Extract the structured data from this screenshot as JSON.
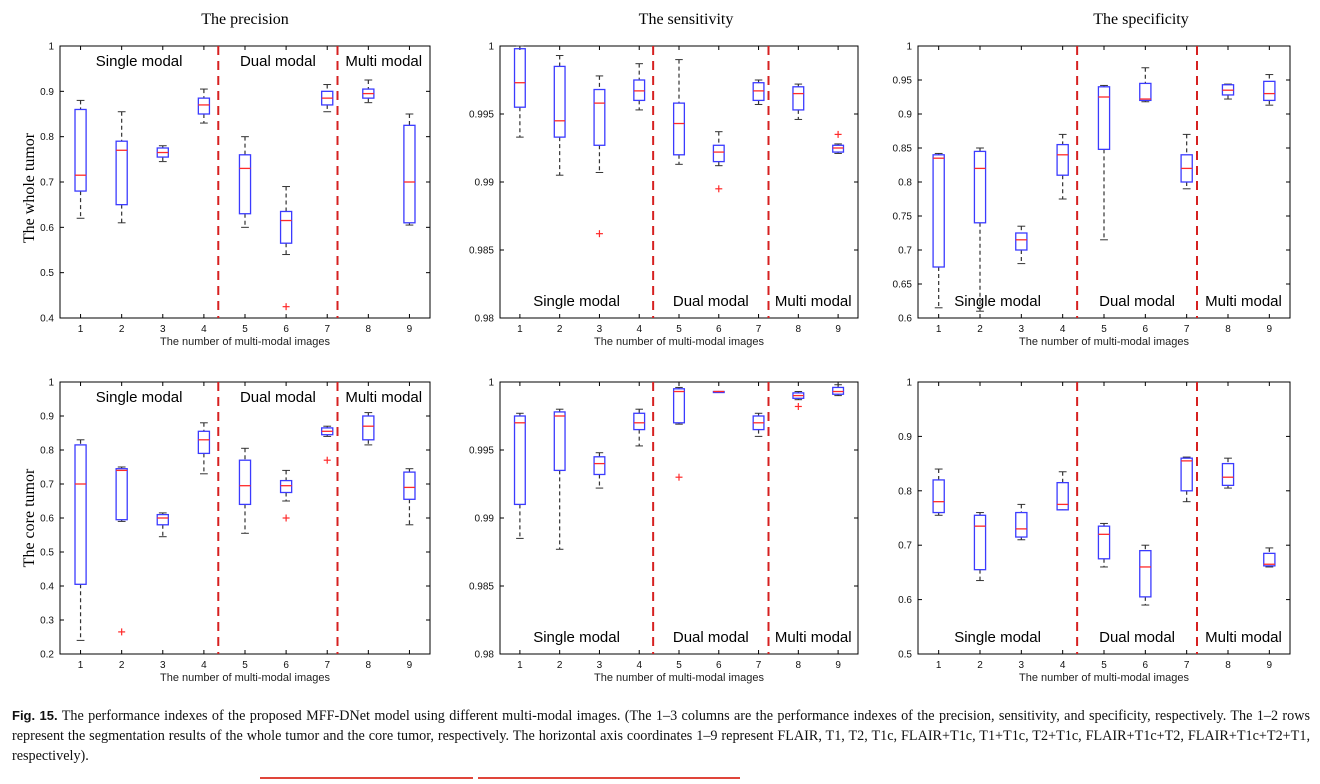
{
  "caption": {
    "label": "Fig. 15.",
    "text": "The performance indexes of the proposed MFF-DNet model using different multi-modal images. (The 1–3 columns are the performance indexes of the precision, sensitivity, and specificity, respectively. The 1–2 rows represent the segmentation results of the whole tumor and the core tumor, respectively. The horizontal axis coordinates 1–9 represent FLAIR, T1, T2, T1c, FLAIR+T1c, T1+T1c, T2+T1c, FLAIR+T1c+T2, FLAIR+T1c+T2+T1, respectively)."
  },
  "colors": {
    "box": "#3b3bff",
    "median": "#ff2a2a",
    "whisker": "#333333",
    "separator": "#d62020",
    "axis": "#000000"
  },
  "chart_data": [
    {
      "type": "box",
      "title": "The precision",
      "ylabel": "The whole tumor",
      "xlabel": "The number of multi-modal images",
      "ylim": [
        0.4,
        1
      ],
      "yticks": [
        0.4,
        0.5,
        0.6,
        0.7,
        0.8,
        0.9,
        1
      ],
      "ytick_labels": [
        "0.4",
        "0.5",
        "0.6",
        "0.7",
        "0.8",
        "0.9",
        "1"
      ],
      "x": [
        1,
        2,
        3,
        4,
        5,
        6,
        7,
        8,
        9
      ],
      "groups": [
        "Single modal",
        "Dual modal",
        "Multi modal"
      ],
      "group_labels_position": "top",
      "separators": [
        4.35,
        7.25
      ],
      "boxes": [
        {
          "x": 1,
          "q1": 0.68,
          "med": 0.715,
          "q3": 0.86,
          "lo": 0.62,
          "hi": 0.88,
          "out": []
        },
        {
          "x": 2,
          "q1": 0.65,
          "med": 0.77,
          "q3": 0.79,
          "lo": 0.61,
          "hi": 0.855,
          "out": []
        },
        {
          "x": 3,
          "q1": 0.755,
          "med": 0.765,
          "q3": 0.775,
          "lo": 0.745,
          "hi": 0.78,
          "out": []
        },
        {
          "x": 4,
          "q1": 0.85,
          "med": 0.87,
          "q3": 0.885,
          "lo": 0.83,
          "hi": 0.905,
          "out": []
        },
        {
          "x": 5,
          "q1": 0.63,
          "med": 0.73,
          "q3": 0.76,
          "lo": 0.6,
          "hi": 0.8,
          "out": []
        },
        {
          "x": 6,
          "q1": 0.565,
          "med": 0.615,
          "q3": 0.635,
          "lo": 0.54,
          "hi": 0.69,
          "out": [
            0.425
          ]
        },
        {
          "x": 7,
          "q1": 0.87,
          "med": 0.885,
          "q3": 0.9,
          "lo": 0.855,
          "hi": 0.915,
          "out": []
        },
        {
          "x": 8,
          "q1": 0.885,
          "med": 0.895,
          "q3": 0.905,
          "lo": 0.875,
          "hi": 0.925,
          "out": []
        },
        {
          "x": 9,
          "q1": 0.61,
          "med": 0.7,
          "q3": 0.825,
          "lo": 0.605,
          "hi": 0.85,
          "out": []
        }
      ]
    },
    {
      "type": "box",
      "title": "The sensitivity",
      "ylabel": "",
      "xlabel": "The number of multi-modal images",
      "ylim": [
        0.98,
        1
      ],
      "yticks": [
        0.98,
        0.985,
        0.99,
        0.995,
        1
      ],
      "ytick_labels": [
        "0.98",
        "0.985",
        "0.99",
        "0.995",
        "1"
      ],
      "x": [
        1,
        2,
        3,
        4,
        5,
        6,
        7,
        8,
        9
      ],
      "groups": [
        "Single modal",
        "Dual modal",
        "Multi modal"
      ],
      "group_labels_position": "bottom",
      "separators": [
        4.35,
        7.25
      ],
      "boxes": [
        {
          "x": 1,
          "q1": 0.9955,
          "med": 0.9973,
          "q3": 0.9998,
          "lo": 0.9933,
          "hi": 1.0,
          "out": []
        },
        {
          "x": 2,
          "q1": 0.9933,
          "med": 0.9945,
          "q3": 0.9985,
          "lo": 0.9905,
          "hi": 0.9993,
          "out": []
        },
        {
          "x": 3,
          "q1": 0.9927,
          "med": 0.9958,
          "q3": 0.9968,
          "lo": 0.9907,
          "hi": 0.9978,
          "out": [
            0.9862
          ]
        },
        {
          "x": 4,
          "q1": 0.996,
          "med": 0.9967,
          "q3": 0.9975,
          "lo": 0.9953,
          "hi": 0.9987,
          "out": []
        },
        {
          "x": 5,
          "q1": 0.992,
          "med": 0.9943,
          "q3": 0.9958,
          "lo": 0.9913,
          "hi": 0.999,
          "out": []
        },
        {
          "x": 6,
          "q1": 0.9915,
          "med": 0.9922,
          "q3": 0.9927,
          "lo": 0.9912,
          "hi": 0.9937,
          "out": [
            0.9895
          ]
        },
        {
          "x": 7,
          "q1": 0.996,
          "med": 0.9967,
          "q3": 0.9973,
          "lo": 0.9957,
          "hi": 0.9975,
          "out": []
        },
        {
          "x": 8,
          "q1": 0.9953,
          "med": 0.9965,
          "q3": 0.997,
          "lo": 0.9946,
          "hi": 0.9972,
          "out": []
        },
        {
          "x": 9,
          "q1": 0.9922,
          "med": 0.9925,
          "q3": 0.9927,
          "lo": 0.9921,
          "hi": 0.9928,
          "out": [
            0.9935
          ]
        }
      ]
    },
    {
      "type": "box",
      "title": "The specificity",
      "ylabel": "",
      "xlabel": "The number of multi-modal images",
      "ylim": [
        0.6,
        1
      ],
      "yticks": [
        0.6,
        0.65,
        0.7,
        0.75,
        0.8,
        0.85,
        0.9,
        0.95,
        1
      ],
      "ytick_labels": [
        "0.6",
        "0.65",
        "0.7",
        "0.75",
        "0.8",
        "0.85",
        "0.9",
        "0.95",
        "1"
      ],
      "x": [
        1,
        2,
        3,
        4,
        5,
        6,
        7,
        8,
        9
      ],
      "groups": [
        "Single modal",
        "Dual modal",
        "Multi modal"
      ],
      "group_labels_position": "bottom",
      "separators": [
        4.35,
        7.25
      ],
      "boxes": [
        {
          "x": 1,
          "q1": 0.675,
          "med": 0.835,
          "q3": 0.84,
          "lo": 0.615,
          "hi": 0.842,
          "out": []
        },
        {
          "x": 2,
          "q1": 0.74,
          "med": 0.82,
          "q3": 0.845,
          "lo": 0.61,
          "hi": 0.85,
          "out": []
        },
        {
          "x": 3,
          "q1": 0.7,
          "med": 0.715,
          "q3": 0.725,
          "lo": 0.68,
          "hi": 0.735,
          "out": []
        },
        {
          "x": 4,
          "q1": 0.81,
          "med": 0.84,
          "q3": 0.855,
          "lo": 0.775,
          "hi": 0.87,
          "out": []
        },
        {
          "x": 5,
          "q1": 0.848,
          "med": 0.925,
          "q3": 0.94,
          "lo": 0.715,
          "hi": 0.942,
          "out": []
        },
        {
          "x": 6,
          "q1": 0.92,
          "med": 0.922,
          "q3": 0.945,
          "lo": 0.918,
          "hi": 0.968,
          "out": []
        },
        {
          "x": 7,
          "q1": 0.8,
          "med": 0.82,
          "q3": 0.84,
          "lo": 0.79,
          "hi": 0.87,
          "out": []
        },
        {
          "x": 8,
          "q1": 0.928,
          "med": 0.935,
          "q3": 0.943,
          "lo": 0.922,
          "hi": 0.944,
          "out": []
        },
        {
          "x": 9,
          "q1": 0.92,
          "med": 0.93,
          "q3": 0.948,
          "lo": 0.913,
          "hi": 0.958,
          "out": []
        }
      ]
    },
    {
      "type": "box",
      "title": "",
      "ylabel": "The core tumor",
      "xlabel": "The number of multi-modal images",
      "ylim": [
        0.2,
        1
      ],
      "yticks": [
        0.2,
        0.3,
        0.4,
        0.5,
        0.6,
        0.7,
        0.8,
        0.9,
        1
      ],
      "ytick_labels": [
        "0.2",
        "0.3",
        "0.4",
        "0.5",
        "0.6",
        "0.7",
        "0.8",
        "0.9",
        "1"
      ],
      "x": [
        1,
        2,
        3,
        4,
        5,
        6,
        7,
        8,
        9
      ],
      "groups": [
        "Single modal",
        "Dual modal",
        "Multi modal"
      ],
      "group_labels_position": "top",
      "separators": [
        4.35,
        7.25
      ],
      "boxes": [
        {
          "x": 1,
          "q1": 0.405,
          "med": 0.7,
          "q3": 0.815,
          "lo": 0.24,
          "hi": 0.83,
          "out": []
        },
        {
          "x": 2,
          "q1": 0.595,
          "med": 0.74,
          "q3": 0.745,
          "lo": 0.59,
          "hi": 0.75,
          "out": [
            0.265
          ]
        },
        {
          "x": 3,
          "q1": 0.58,
          "med": 0.6,
          "q3": 0.61,
          "lo": 0.545,
          "hi": 0.615,
          "out": []
        },
        {
          "x": 4,
          "q1": 0.79,
          "med": 0.83,
          "q3": 0.855,
          "lo": 0.73,
          "hi": 0.88,
          "out": []
        },
        {
          "x": 5,
          "q1": 0.64,
          "med": 0.695,
          "q3": 0.77,
          "lo": 0.555,
          "hi": 0.805,
          "out": []
        },
        {
          "x": 6,
          "q1": 0.675,
          "med": 0.695,
          "q3": 0.71,
          "lo": 0.65,
          "hi": 0.74,
          "out": [
            0.6
          ]
        },
        {
          "x": 7,
          "q1": 0.845,
          "med": 0.855,
          "q3": 0.865,
          "lo": 0.84,
          "hi": 0.87,
          "out": [
            0.77
          ]
        },
        {
          "x": 8,
          "q1": 0.83,
          "med": 0.87,
          "q3": 0.9,
          "lo": 0.815,
          "hi": 0.91,
          "out": []
        },
        {
          "x": 9,
          "q1": 0.655,
          "med": 0.69,
          "q3": 0.735,
          "lo": 0.58,
          "hi": 0.745,
          "out": []
        }
      ]
    },
    {
      "type": "box",
      "title": "",
      "ylabel": "",
      "xlabel": "The number of multi-modal images",
      "ylim": [
        0.98,
        1
      ],
      "yticks": [
        0.98,
        0.985,
        0.99,
        0.995,
        1
      ],
      "ytick_labels": [
        "0.98",
        "0.985",
        "0.99",
        "0.995",
        "1"
      ],
      "x": [
        1,
        2,
        3,
        4,
        5,
        6,
        7,
        8,
        9
      ],
      "groups": [
        "Single modal",
        "Dual modal",
        "Multi modal"
      ],
      "group_labels_position": "bottom",
      "separators": [
        4.35,
        7.25
      ],
      "boxes": [
        {
          "x": 1,
          "q1": 0.991,
          "med": 0.997,
          "q3": 0.9975,
          "lo": 0.9885,
          "hi": 0.9977,
          "out": []
        },
        {
          "x": 2,
          "q1": 0.9935,
          "med": 0.9975,
          "q3": 0.9978,
          "lo": 0.9877,
          "hi": 0.998,
          "out": []
        },
        {
          "x": 3,
          "q1": 0.9932,
          "med": 0.994,
          "q3": 0.9945,
          "lo": 0.9922,
          "hi": 0.9948,
          "out": []
        },
        {
          "x": 4,
          "q1": 0.9965,
          "med": 0.997,
          "q3": 0.9977,
          "lo": 0.9953,
          "hi": 0.998,
          "out": []
        },
        {
          "x": 5,
          "q1": 0.997,
          "med": 0.9993,
          "q3": 0.9995,
          "lo": 0.9969,
          "hi": 0.9996,
          "out": [
            0.993
          ]
        },
        {
          "x": 6,
          "q1": 0.9993,
          "med": 0.9993,
          "q3": 0.9993,
          "lo": 0.9993,
          "hi": 0.9993,
          "out": []
        },
        {
          "x": 7,
          "q1": 0.9965,
          "med": 0.997,
          "q3": 0.9975,
          "lo": 0.996,
          "hi": 0.9977,
          "out": []
        },
        {
          "x": 8,
          "q1": 0.9988,
          "med": 0.999,
          "q3": 0.9992,
          "lo": 0.9987,
          "hi": 0.9993,
          "out": [
            0.9982
          ]
        },
        {
          "x": 9,
          "q1": 0.9991,
          "med": 0.9993,
          "q3": 0.9996,
          "lo": 0.999,
          "hi": 0.9998,
          "out": []
        }
      ]
    },
    {
      "type": "box",
      "title": "",
      "ylabel": "",
      "xlabel": "The number of multi-modal images",
      "ylim": [
        0.5,
        1
      ],
      "yticks": [
        0.5,
        0.6,
        0.7,
        0.8,
        0.9,
        1
      ],
      "ytick_labels": [
        "0.5",
        "0.6",
        "0.7",
        "0.8",
        "0.9",
        "1"
      ],
      "x": [
        1,
        2,
        3,
        4,
        5,
        6,
        7,
        8,
        9
      ],
      "groups": [
        "Single modal",
        "Dual modal",
        "Multi modal"
      ],
      "group_labels_position": "bottom",
      "separators": [
        4.35,
        7.25
      ],
      "boxes": [
        {
          "x": 1,
          "q1": 0.76,
          "med": 0.78,
          "q3": 0.82,
          "lo": 0.755,
          "hi": 0.84,
          "out": []
        },
        {
          "x": 2,
          "q1": 0.655,
          "med": 0.735,
          "q3": 0.755,
          "lo": 0.635,
          "hi": 0.76,
          "out": []
        },
        {
          "x": 3,
          "q1": 0.715,
          "med": 0.73,
          "q3": 0.76,
          "lo": 0.71,
          "hi": 0.775,
          "out": []
        },
        {
          "x": 4,
          "q1": 0.765,
          "med": 0.775,
          "q3": 0.815,
          "lo": 0.765,
          "hi": 0.835,
          "out": []
        },
        {
          "x": 5,
          "q1": 0.675,
          "med": 0.72,
          "q3": 0.735,
          "lo": 0.66,
          "hi": 0.74,
          "out": []
        },
        {
          "x": 6,
          "q1": 0.605,
          "med": 0.66,
          "q3": 0.69,
          "lo": 0.59,
          "hi": 0.7,
          "out": []
        },
        {
          "x": 7,
          "q1": 0.8,
          "med": 0.855,
          "q3": 0.86,
          "lo": 0.78,
          "hi": 0.862,
          "out": []
        },
        {
          "x": 8,
          "q1": 0.81,
          "med": 0.825,
          "q3": 0.85,
          "lo": 0.805,
          "hi": 0.86,
          "out": []
        },
        {
          "x": 9,
          "q1": 0.662,
          "med": 0.665,
          "q3": 0.685,
          "lo": 0.66,
          "hi": 0.695,
          "out": []
        }
      ]
    }
  ]
}
